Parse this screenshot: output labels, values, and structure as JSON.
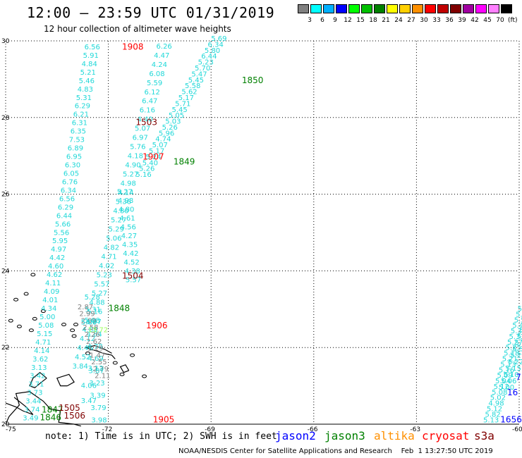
{
  "header": {
    "title": "12:00 – 23:59 UTC 01/31/2019",
    "subtitle": "12 hour collection of altimeter wave heights"
  },
  "legend": {
    "unit": "(ft)",
    "bins": [
      {
        "label": "3",
        "color": "#808080"
      },
      {
        "label": "6",
        "color": "#00ffff"
      },
      {
        "label": "9",
        "color": "#00b0ff"
      },
      {
        "label": "12",
        "color": "#0000ff"
      },
      {
        "label": "15",
        "color": "#00ff00"
      },
      {
        "label": "18",
        "color": "#00c000"
      },
      {
        "label": "21",
        "color": "#008000"
      },
      {
        "label": "24",
        "color": "#ffff00"
      },
      {
        "label": "27",
        "color": "#ffd000"
      },
      {
        "label": "30",
        "color": "#ff9000"
      },
      {
        "label": "33",
        "color": "#ff0000"
      },
      {
        "label": "36",
        "color": "#c00000"
      },
      {
        "label": "39",
        "color": "#800000"
      },
      {
        "label": "42",
        "color": "#a000a0"
      },
      {
        "label": "45",
        "color": "#ff00ff"
      },
      {
        "label": "70",
        "color": "#ff80ff"
      },
      {
        "label": "",
        "color": "#000000"
      }
    ]
  },
  "axes": {
    "lat_labels": [
      "30",
      "28",
      "26",
      "24",
      "22",
      "20"
    ],
    "lon_labels": [
      "-75",
      "-72",
      "-69",
      "-66",
      "-63",
      "-60"
    ]
  },
  "map": {
    "passes": [
      {
        "time": "1908",
        "color": "#ff0000",
        "lon": -71.6,
        "lat": 29.77
      },
      {
        "time": "1850",
        "color": "#008000",
        "lon": -68.1,
        "lat": 28.9
      },
      {
        "time": "1503",
        "color": "#800000",
        "lon": -71.2,
        "lat": 27.8
      },
      {
        "time": "1907",
        "color": "#ff0000",
        "lon": -71.0,
        "lat": 26.9
      },
      {
        "time": "1849",
        "color": "#008000",
        "lon": -70.1,
        "lat": 26.77
      },
      {
        "time": "1504",
        "color": "#800000",
        "lon": -71.6,
        "lat": 23.8
      },
      {
        "time": "1848",
        "color": "#008000",
        "lon": -72.0,
        "lat": 22.95
      },
      {
        "time": "1906",
        "color": "#ff0000",
        "lon": -70.9,
        "lat": 22.5
      },
      {
        "time": "1847",
        "color": "#008000",
        "lon": -73.95,
        "lat": 20.3
      },
      {
        "time": "1505",
        "color": "#800000",
        "lon": -73.45,
        "lat": 20.35
      },
      {
        "time": "1846",
        "color": "#008000",
        "lon": -74.0,
        "lat": 20.1
      },
      {
        "time": "1506",
        "color": "#800000",
        "lon": -73.3,
        "lat": 20.15
      },
      {
        "time": "1905",
        "color": "#ff0000",
        "lon": -70.7,
        "lat": 20.05
      },
      {
        "time": "1656",
        "color": "#0000ff",
        "lon": -60.55,
        "lat": 20.05
      },
      {
        "time": "16",
        "color": "#0000ff",
        "lon": -60.35,
        "lat": 20.75
      },
      {
        "time": "7",
        "color": "#0000ff",
        "lon": -60.1,
        "lat": 21.15
      }
    ],
    "tracks": [
      {
        "color": "#20d8d8",
        "start": {
          "lon": -72.7,
          "lat": 29.78
        },
        "end": {
          "lon": -74.5,
          "lat": 20.1
        },
        "values": [
          "6.56",
          "5.91",
          "4.84",
          "5.21",
          "5.46",
          "4.83",
          "5.31",
          "6.29",
          "6.21",
          "6.31",
          "6.35",
          "7.53",
          "6.89",
          "6.95",
          "6.30",
          "6.05",
          "6.76",
          "6.34",
          "6.56",
          "6.29",
          "6.44",
          "5.66",
          "5.56",
          "5.95",
          "4.97",
          "4.42",
          "4.60",
          "4.62",
          "4.11",
          "4.09",
          "4.01",
          "4.34",
          "5.00",
          "5.08",
          "5.15",
          "4.71",
          "4.14",
          "3.62",
          "3.13",
          "3.42",
          "3.71",
          "3.73",
          "3.44",
          "3.74",
          "3.49"
        ]
      },
      {
        "color": "#20d8d8",
        "start": {
          "lon": -70.6,
          "lat": 29.8
        },
        "end": {
          "lon": -73.05,
          "lat": 21.45
        },
        "values": [
          "6.26",
          "4.47",
          "4.24",
          "6.08",
          "5.59",
          "6.12",
          "6.47",
          "6.16",
          "4.40",
          "5.07",
          "6.97",
          "5.76",
          "4.18",
          "4.90",
          "5.27",
          "4.98",
          "4.14",
          "5.36",
          "4.80",
          "5.27",
          "5.29",
          "5.06",
          "4.82",
          "4.71",
          "4.02",
          "5.23",
          "5.57",
          "5.27",
          "4.88",
          "5.16",
          "5.08",
          "4.68",
          "4.12",
          "4.46",
          "4.52",
          "3.84"
        ]
      },
      {
        "color": "#20d8d8",
        "start": {
          "lon": -69.0,
          "lat": 30.0
        },
        "end": {
          "lon": -71.2,
          "lat": 26.45
        },
        "values": [
          "5.69",
          "6.34",
          "5.80",
          "6.44",
          "5.23",
          "5.70",
          "5.47",
          "5.45",
          "5.58",
          "5.62",
          "5.17",
          "5.71",
          "5.45",
          "5.05",
          "5.03",
          "5.26",
          "5.96",
          "4.74",
          "5.07",
          "5.17",
          "5.24",
          "5.40",
          "5.26",
          "5.16"
        ]
      },
      {
        "color": "#20d8d8",
        "start": {
          "lon": -71.75,
          "lat": 26.0
        },
        "end": {
          "lon": -71.5,
          "lat": 23.7
        },
        "values": [
          "5.27",
          "4.98",
          "4.80",
          "4.61",
          "4.56",
          "4.27",
          "4.35",
          "4.42",
          "4.52",
          "4.38",
          "5.57"
        ]
      },
      {
        "color": "#20d8d8",
        "start": {
          "lon": -72.7,
          "lat": 23.25
        },
        "end": {
          "lon": -72.5,
          "lat": 20.05
        },
        "values": [
          "5.28",
          "5.31",
          "6.07",
          "4.84",
          "4.78",
          "4.69",
          "3.87",
          "3.23",
          "3.39",
          "3.79",
          "3.98"
        ]
      },
      {
        "color": "#808080",
        "start": {
          "lon": -72.9,
          "lat": 23.0
        },
        "end": {
          "lon": -72.4,
          "lat": 21.2
        },
        "values": [
          "2.87",
          "2.99",
          "2.99",
          "2.58",
          "2.26",
          "2.62",
          "2.29",
          "1.47",
          "2.55",
          "2.79",
          "2.11"
        ]
      },
      {
        "color": "#20d8d8",
        "start": {
          "lon": -60.05,
          "lat": 22.95
        },
        "end": {
          "lon": -61.05,
          "lat": 20.05
        },
        "values": [
          "5.92",
          "5.84",
          "5.55",
          "5.49",
          "5.37",
          "5.33",
          "5.27",
          "5.25",
          "5.18",
          "5.21",
          "5.13",
          "5.16",
          "5.09",
          "5.04",
          "5.12",
          "5.08",
          "5.02",
          "4.98",
          "5.12",
          "5.82",
          "5.13"
        ]
      },
      {
        "color": "#20d8d8",
        "start": {
          "lon": -60.0,
          "lat": 22.4
        },
        "end": {
          "lon": -60.6,
          "lat": 20.9
        },
        "values": [
          "5.53",
          "5.41",
          "5.36",
          "5.30",
          "5.29",
          "5.22",
          "5.15",
          "5.10",
          "5.06",
          "5.00"
        ]
      }
    ],
    "odd_values": [
      {
        "text": "13.72",
        "color": "#a0ff60",
        "lon": -72.6,
        "lat": 22.4
      },
      {
        "text": "5.06",
        "color": "#20d8d8",
        "lon": -72.8,
        "lat": 22.6
      },
      {
        "text": "3.12",
        "color": "#20d8d8",
        "lon": -72.6,
        "lat": 21.4
      },
      {
        "text": "4.06",
        "color": "#20d8d8",
        "lon": -72.8,
        "lat": 20.95
      },
      {
        "text": "3.47",
        "color": "#20d8d8",
        "lon": -72.8,
        "lat": 20.55
      }
    ],
    "land": "Bahamas, Turks and Caicos, Hispaniola, Cuba (east)"
  },
  "footer": {
    "note": "note: 1) Time is in UTC; 2) SWH is in feet",
    "satellites": [
      {
        "name": "jason2",
        "color": "#0000ff"
      },
      {
        "name": "jason3",
        "color": "#008000"
      },
      {
        "name": "altika",
        "color": "#ff9000"
      },
      {
        "name": "cryosat",
        "color": "#ff0000"
      },
      {
        "name": "s3a",
        "color": "#800000"
      }
    ],
    "credit": "NOAA/NESDIS Center for Satellite Applications and Research    Feb  1 13:27:50 UTC 2019"
  }
}
